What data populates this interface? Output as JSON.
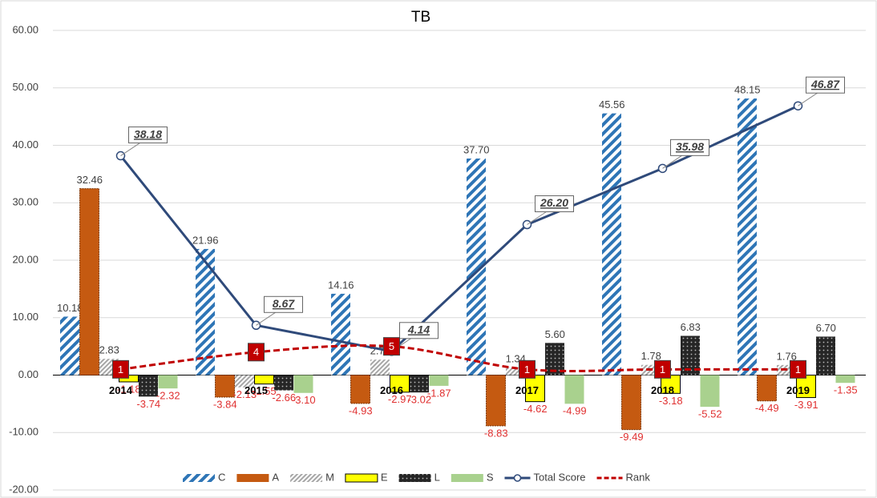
{
  "chart_data": {
    "type": "bar-line",
    "title": "TB",
    "categories": [
      "2014",
      "2015",
      "2016",
      "2017",
      "2018",
      "2019"
    ],
    "ylim": [
      -20,
      60
    ],
    "yticks": [
      {
        "value": -20,
        "label": "-20.00"
      },
      {
        "value": -10,
        "label": "-10.00"
      },
      {
        "value": 0,
        "label": "0.00"
      },
      {
        "value": 10,
        "label": "10.00"
      },
      {
        "value": 20,
        "label": "20.00"
      },
      {
        "value": 30,
        "label": "30.00"
      },
      {
        "value": 40,
        "label": "40.00"
      },
      {
        "value": 50,
        "label": "50.00"
      },
      {
        "value": 60,
        "label": "60.00"
      }
    ],
    "grid": true,
    "legend": "bottom",
    "series": [
      {
        "name": "C",
        "kind": "bar",
        "color": "#2e75b6",
        "values": [
          10.18,
          21.96,
          14.16,
          37.7,
          45.56,
          48.15
        ],
        "value_labels": [
          "10.18",
          "21.96",
          "14.16",
          "37.70",
          "45.56",
          "48.15"
        ]
      },
      {
        "name": "A",
        "kind": "bar",
        "color": "#c55a11",
        "values": [
          32.46,
          -3.84,
          -4.93,
          -8.83,
          -9.49,
          -4.49
        ],
        "value_labels": [
          "32.46",
          "-3.84",
          "-4.93",
          "-8.83",
          "-9.49",
          "-4.49"
        ]
      },
      {
        "name": "M",
        "kind": "bar",
        "color": "#a6a6a6",
        "values": [
          2.83,
          -2.13,
          2.7,
          1.34,
          1.78,
          1.76
        ],
        "value_labels": [
          "2.83",
          "-2.13",
          "2.70",
          "1.34",
          "1.78",
          "1.76"
        ]
      },
      {
        "name": "E",
        "kind": "bar",
        "color": "#ffff00",
        "values": [
          -1.18,
          -1.55,
          -2.97,
          -4.62,
          -3.18,
          -3.91
        ],
        "value_labels": [
          "-1.18",
          "-1.55",
          "-2.97",
          "-4.62",
          "-3.18",
          "-3.91"
        ]
      },
      {
        "name": "L",
        "kind": "bar",
        "color": "#262626",
        "values": [
          -3.74,
          -2.66,
          -3.02,
          5.6,
          6.83,
          6.7
        ],
        "value_labels": [
          "-3.74",
          "-2.66",
          "-3.02",
          "5.60",
          "6.83",
          "6.70"
        ]
      },
      {
        "name": "S",
        "kind": "bar",
        "color": "#a9d18e",
        "values": [
          -2.32,
          -3.1,
          -1.87,
          -4.99,
          -5.52,
          -1.35
        ],
        "value_labels": [
          "-2.32",
          "-3.10",
          "-1.87",
          "-4.99",
          "-5.52",
          "-1.35"
        ]
      },
      {
        "name": "Total Score",
        "kind": "line",
        "color": "#2f4a7a",
        "values": [
          38.18,
          8.67,
          4.14,
          26.2,
          35.98,
          46.87
        ],
        "value_labels": [
          "38.18",
          "8.67",
          "4.14",
          "26.20",
          "35.98",
          "46.87"
        ]
      },
      {
        "name": "Rank",
        "kind": "dashed",
        "color": "#c00000",
        "values": [
          1,
          4,
          5,
          1,
          1,
          1
        ]
      }
    ]
  }
}
